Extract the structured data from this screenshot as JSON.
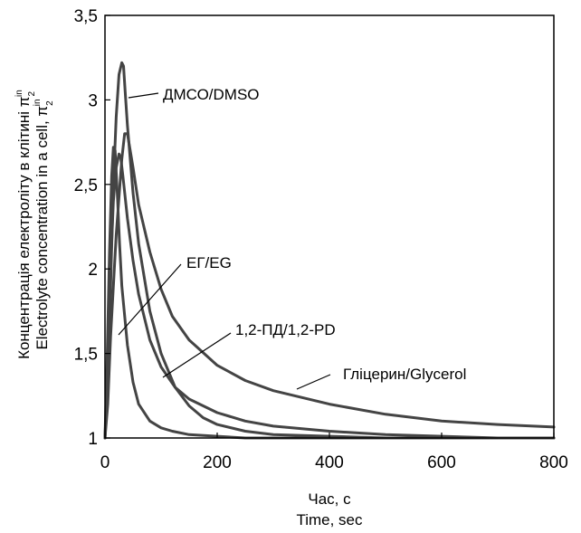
{
  "chart_data": {
    "type": "line",
    "xlabel_line1": "Час, с",
    "xlabel_line2": "Time,  sec",
    "ylabel_line1": "Концентрація електроліту в клітині π",
    "ylabel_line2": "Electrolyte concentration in a cell, π",
    "ylabel_symbol_sup": "in",
    "ylabel_symbol_sub": "2",
    "xlim": [
      0,
      800
    ],
    "ylim": [
      1,
      3.5
    ],
    "x_ticks": [
      "0",
      "200",
      "400",
      "600",
      "800"
    ],
    "y_ticks": [
      "1",
      "1,5",
      "2",
      "2,5",
      "3",
      "3,5"
    ],
    "grid": false,
    "series": [
      {
        "name": "ДМСО/DMSO",
        "points": [
          [
            0,
            1
          ],
          [
            5,
            1.3
          ],
          [
            10,
            1.9
          ],
          [
            15,
            2.5
          ],
          [
            20,
            2.9
          ],
          [
            25,
            3.15
          ],
          [
            30,
            3.22
          ],
          [
            33,
            3.2
          ],
          [
            36,
            3.05
          ],
          [
            40,
            2.85
          ],
          [
            50,
            2.45
          ],
          [
            60,
            2.15
          ],
          [
            80,
            1.75
          ],
          [
            100,
            1.5
          ],
          [
            125,
            1.3
          ],
          [
            150,
            1.19
          ],
          [
            175,
            1.12
          ],
          [
            200,
            1.08
          ],
          [
            250,
            1.04
          ],
          [
            300,
            1.02
          ],
          [
            400,
            1.01
          ],
          [
            500,
            1.0
          ],
          [
            800,
            1.0
          ]
        ]
      },
      {
        "name": "ЕГ/EG",
        "points": [
          [
            0,
            1
          ],
          [
            4,
            1.5
          ],
          [
            8,
            2.1
          ],
          [
            12,
            2.55
          ],
          [
            15,
            2.72
          ],
          [
            18,
            2.7
          ],
          [
            22,
            2.45
          ],
          [
            26,
            2.15
          ],
          [
            30,
            1.9
          ],
          [
            40,
            1.55
          ],
          [
            50,
            1.33
          ],
          [
            60,
            1.2
          ],
          [
            80,
            1.1
          ],
          [
            100,
            1.06
          ],
          [
            120,
            1.04
          ],
          [
            150,
            1.02
          ],
          [
            200,
            1.01
          ],
          [
            250,
            1.0
          ],
          [
            800,
            1.0
          ]
        ]
      },
      {
        "name": "1,2-ПД/1,2-PD",
        "points": [
          [
            0,
            1
          ],
          [
            5,
            1.4
          ],
          [
            10,
            2.0
          ],
          [
            15,
            2.4
          ],
          [
            20,
            2.6
          ],
          [
            25,
            2.68
          ],
          [
            28,
            2.66
          ],
          [
            32,
            2.55
          ],
          [
            40,
            2.3
          ],
          [
            50,
            2.05
          ],
          [
            60,
            1.85
          ],
          [
            80,
            1.58
          ],
          [
            100,
            1.42
          ],
          [
            125,
            1.3
          ],
          [
            150,
            1.23
          ],
          [
            200,
            1.15
          ],
          [
            250,
            1.1
          ],
          [
            300,
            1.07
          ],
          [
            400,
            1.04
          ],
          [
            500,
            1.02
          ],
          [
            600,
            1.01
          ],
          [
            700,
            1.0
          ],
          [
            800,
            1.0
          ]
        ]
      },
      {
        "name": "Гліцерин/Glycerol",
        "points": [
          [
            0,
            1
          ],
          [
            5,
            1.2
          ],
          [
            10,
            1.6
          ],
          [
            20,
            2.2
          ],
          [
            30,
            2.65
          ],
          [
            35,
            2.8
          ],
          [
            40,
            2.8
          ],
          [
            45,
            2.7
          ],
          [
            50,
            2.6
          ],
          [
            60,
            2.38
          ],
          [
            80,
            2.1
          ],
          [
            100,
            1.88
          ],
          [
            120,
            1.72
          ],
          [
            150,
            1.58
          ],
          [
            200,
            1.43
          ],
          [
            250,
            1.34
          ],
          [
            300,
            1.28
          ],
          [
            400,
            1.2
          ],
          [
            500,
            1.14
          ],
          [
            600,
            1.1
          ],
          [
            700,
            1.08
          ],
          [
            800,
            1.065
          ]
        ]
      }
    ],
    "annotations": [
      {
        "label": "ДМСО/DMSO",
        "series": 0
      },
      {
        "label": "ЕГ/EG",
        "series": 1
      },
      {
        "label": "1,2-ПД/1,2-PD",
        "series": 2
      },
      {
        "label": "Гліцерин/Glycerol",
        "series": 3
      }
    ]
  }
}
